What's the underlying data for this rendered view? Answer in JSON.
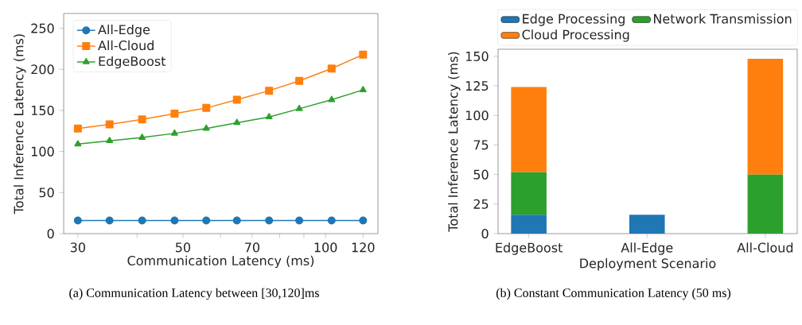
{
  "chart_data": [
    {
      "type": "line",
      "xlabel": "Communication Latency (ms)",
      "ylabel": "Total Inference Latency (ms)",
      "annotations": [
        "(a) Communication Latency between [30,120]ms"
      ],
      "log": "x",
      "x": [
        30,
        35,
        41,
        48,
        56,
        65,
        76,
        88,
        103,
        120
      ],
      "xlim": [
        28,
        129
      ],
      "ylim": [
        0,
        268
      ],
      "xticks": [
        30,
        {
          "value": 40,
          "label": null
        },
        50,
        {
          "value": 60,
          "label": null
        },
        70,
        {
          "value": 80,
          "label": null
        },
        {
          "value": 90,
          "label": null
        },
        100,
        120
      ],
      "yticks": [
        0,
        50,
        100,
        150,
        200,
        250
      ],
      "grid": false,
      "legend": "top left",
      "line_style": "solid",
      "series": [
        {
          "name": "All-Edge",
          "color": "#1f77b4",
          "marker": "circle",
          "values": [
            16,
            16,
            16,
            16,
            16,
            16,
            16,
            16,
            16,
            16
          ]
        },
        {
          "name": "All-Cloud",
          "color": "#ff7f0e",
          "marker": "square",
          "values": [
            128,
            133,
            139,
            146,
            153,
            163,
            174,
            186,
            201,
            218
          ]
        },
        {
          "name": "EdgeBoost",
          "color": "#2ca02c",
          "marker": "triangle",
          "values": [
            109,
            113,
            117,
            122,
            128,
            135,
            142,
            152,
            163,
            175
          ]
        }
      ]
    },
    {
      "type": "bar",
      "stacked": true,
      "xlabel": "Deployment Scenario",
      "ylabel": "Total Inference Latency (ms)",
      "annotations": [
        "(b) Constant Communication Latency (50 ms)"
      ],
      "categories": [
        "EdgeBoost",
        "All-Edge",
        "All-Cloud"
      ],
      "ylim": [
        0,
        156
      ],
      "yticks": [
        0,
        25,
        50,
        75,
        100,
        125,
        150
      ],
      "grid": false,
      "legend": "top",
      "series": [
        {
          "name": "Edge Processing",
          "color": "#1f77b4",
          "values": [
            16,
            16,
            0
          ]
        },
        {
          "name": "Network Transmission",
          "color": "#2ca02c",
          "values": [
            36,
            0,
            50
          ]
        },
        {
          "name": "Cloud Processing",
          "color": "#ff7f0e",
          "values": [
            72,
            0,
            98
          ]
        }
      ]
    }
  ]
}
